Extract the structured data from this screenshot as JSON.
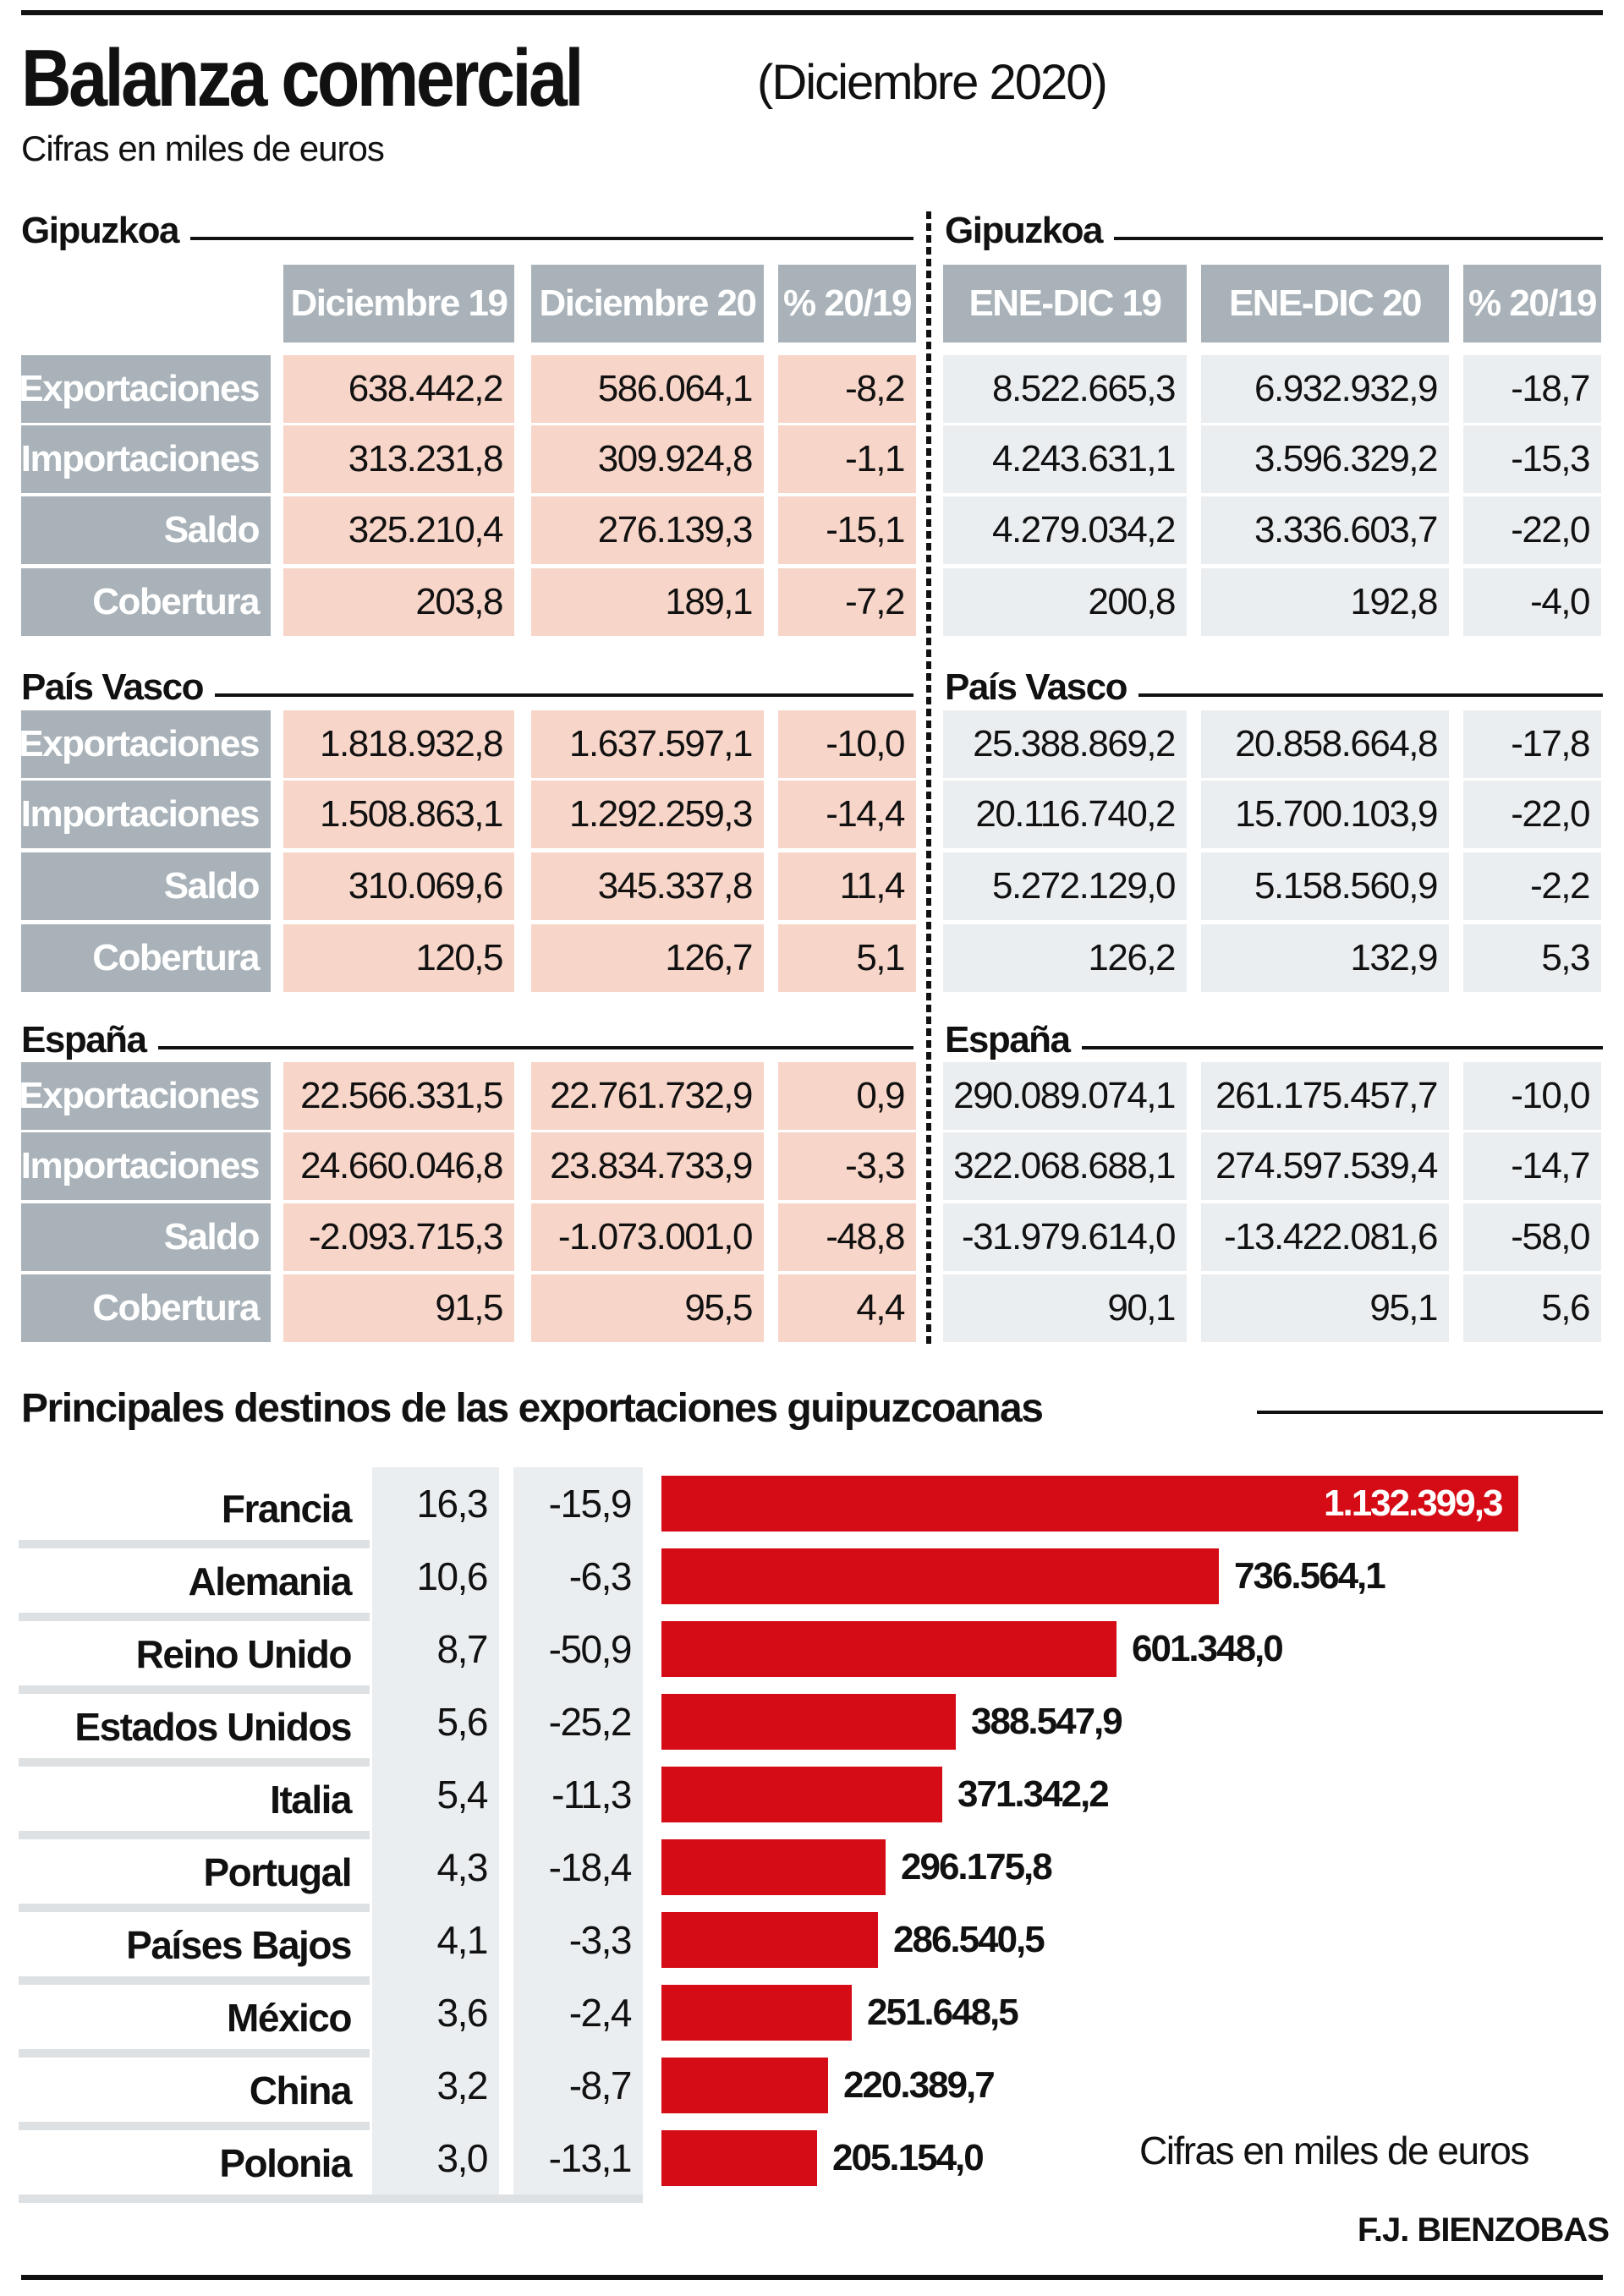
{
  "header": {
    "title": "Balanza comercial",
    "title_period": "(Diciembre 2020)",
    "subtitle": "Cifras en miles de euros"
  },
  "table": {
    "left_columns": [
      "Diciembre 19",
      "Diciembre 20",
      "% 20/19"
    ],
    "right_columns": [
      "ENE-DIC 19",
      "ENE-DIC 20",
      "% 20/19"
    ],
    "row_labels": [
      "Exportaciones",
      "Importaciones",
      "Saldo",
      "Cobertura"
    ],
    "sections": [
      {
        "name": "Gipuzkoa",
        "rows": [
          {
            "label": "Exportaciones",
            "dic19": "638.442,2",
            "dic20": "586.064,1",
            "pct_month": "-8,2",
            "ytd19": "8.522.665,3",
            "ytd20": "6.932.932,9",
            "pct_ytd": "-18,7"
          },
          {
            "label": "Importaciones",
            "dic19": "313.231,8",
            "dic20": "309.924,8",
            "pct_month": "-1,1",
            "ytd19": "4.243.631,1",
            "ytd20": "3.596.329,2",
            "pct_ytd": "-15,3"
          },
          {
            "label": "Saldo",
            "dic19": "325.210,4",
            "dic20": "276.139,3",
            "pct_month": "-15,1",
            "ytd19": "4.279.034,2",
            "ytd20": "3.336.603,7",
            "pct_ytd": "-22,0"
          },
          {
            "label": "Cobertura",
            "dic19": "203,8",
            "dic20": "189,1",
            "pct_month": "-7,2",
            "ytd19": "200,8",
            "ytd20": "192,8",
            "pct_ytd": "-4,0"
          }
        ]
      },
      {
        "name": "País Vasco",
        "rows": [
          {
            "label": "Exportaciones",
            "dic19": "1.818.932,8",
            "dic20": "1.637.597,1",
            "pct_month": "-10,0",
            "ytd19": "25.388.869,2",
            "ytd20": "20.858.664,8",
            "pct_ytd": "-17,8"
          },
          {
            "label": "Importaciones",
            "dic19": "1.508.863,1",
            "dic20": "1.292.259,3",
            "pct_month": "-14,4",
            "ytd19": "20.116.740,2",
            "ytd20": "15.700.103,9",
            "pct_ytd": "-22,0"
          },
          {
            "label": "Saldo",
            "dic19": "310.069,6",
            "dic20": "345.337,8",
            "pct_month": "11,4",
            "ytd19": "5.272.129,0",
            "ytd20": "5.158.560,9",
            "pct_ytd": "-2,2"
          },
          {
            "label": "Cobertura",
            "dic19": "120,5",
            "dic20": "126,7",
            "pct_month": "5,1",
            "ytd19": "126,2",
            "ytd20": "132,9",
            "pct_ytd": "5,3"
          }
        ]
      },
      {
        "name": "España",
        "rows": [
          {
            "label": "Exportaciones",
            "dic19": "22.566.331,5",
            "dic20": "22.761.732,9",
            "pct_month": "0,9",
            "ytd19": "290.089.074,1",
            "ytd20": "261.175.457,7",
            "pct_ytd": "-10,0"
          },
          {
            "label": "Importaciones",
            "dic19": "24.660.046,8",
            "dic20": "23.834.733,9",
            "pct_month": "-3,3",
            "ytd19": "322.068.688,1",
            "ytd20": "274.597.539,4",
            "pct_ytd": "-14,7"
          },
          {
            "label": "Saldo",
            "dic19": "-2.093.715,3",
            "dic20": "-1.073.001,0",
            "pct_month": "-48,8",
            "ytd19": "-31.979.614,0",
            "ytd20": "-13.422.081,6",
            "pct_ytd": "-58,0"
          },
          {
            "label": "Cobertura",
            "dic19": "91,5",
            "dic20": "95,5",
            "pct_month": "4,4",
            "ytd19": "90,1",
            "ytd20": "95,1",
            "pct_ytd": "5,6"
          }
        ]
      }
    ]
  },
  "colors": {
    "bar": "#d50b16",
    "label_cell": "#a8b2b8",
    "month_cell": "#f7d5c8",
    "ytd_cell": "#ebeef0"
  },
  "chart_data": {
    "type": "bar",
    "orientation": "horizontal",
    "title": "Principales destinos de las exportaciones guipuzcoanas",
    "note": "Cifras en miles de euros",
    "categories": [
      "Francia",
      "Alemania",
      "Reino Unido",
      "Estados Unidos",
      "Italia",
      "Portugal",
      "Países Bajos",
      "México",
      "China",
      "Polonia"
    ],
    "share_pct": [
      "16,3",
      "10,6",
      "8,7",
      "5,6",
      "5,4",
      "4,3",
      "4,1",
      "3,6",
      "3,2",
      "3,0"
    ],
    "change_pct": [
      "-15,9",
      "-6,3",
      "-50,9",
      "-25,2",
      "-11,3",
      "-18,4",
      "-3,3",
      "-2,4",
      "-8,7",
      "-13,1"
    ],
    "values": [
      1132399.3,
      736564.1,
      601348.0,
      388547.9,
      371342.2,
      296175.8,
      286540.5,
      251648.5,
      220389.7,
      205154.0
    ],
    "value_labels": [
      "1.132.399,3",
      "736.564,1",
      "601.348,0",
      "388.547,9",
      "371.342,2",
      "296.175,8",
      "286.540,5",
      "251.648,5",
      "220.389,7",
      "205.154,0"
    ],
    "xlim": [
      0,
      1132399.3
    ]
  },
  "credit": "F.J. BIENZOBAS"
}
